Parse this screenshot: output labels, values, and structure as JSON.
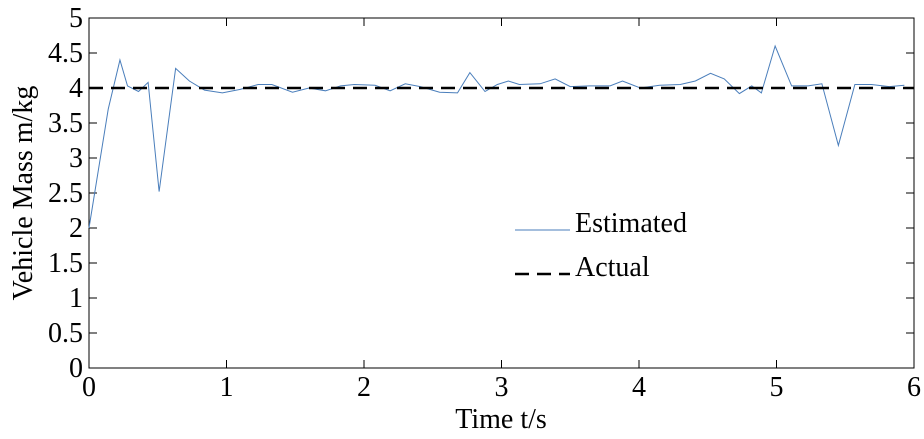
{
  "chart_data": {
    "type": "line",
    "xlabel": "Time t/s",
    "ylabel": "Vehicle Mass m/kg",
    "xlim": [
      0,
      6
    ],
    "xticks": [
      0,
      1,
      2,
      3,
      4,
      5,
      6
    ],
    "ylim": [
      0,
      5
    ],
    "yticks": [
      0,
      0.5,
      1,
      1.5,
      2,
      2.5,
      3,
      3.5,
      4,
      4.5,
      5
    ],
    "legend": "center",
    "series": [
      {
        "name": "Estimated",
        "color": "#4a7ebb",
        "dash": "solid",
        "x": [
          0,
          0.14,
          0.225,
          0.28,
          0.36,
          0.43,
          0.51,
          0.63,
          0.73,
          0.84,
          0.97,
          1.1,
          1.23,
          1.33,
          1.48,
          1.6,
          1.72,
          1.83,
          1.93,
          2.08,
          2.19,
          2.3,
          2.41,
          2.55,
          2.68,
          2.77,
          2.88,
          2.97,
          3.05,
          3.13,
          3.28,
          3.39,
          3.5,
          3.64,
          3.79,
          3.88,
          4.01,
          4.15,
          4.3,
          4.41,
          4.52,
          4.62,
          4.73,
          4.82,
          4.89,
          4.99,
          5.11,
          5.23,
          5.33,
          5.45,
          5.57,
          5.69,
          5.82,
          5.93
        ],
        "values": [
          2.0,
          3.7,
          4.4,
          4.03,
          3.95,
          4.08,
          2.52,
          4.28,
          4.1,
          3.97,
          3.93,
          3.98,
          4.05,
          4.05,
          3.94,
          4.0,
          3.96,
          4.03,
          4.05,
          4.04,
          3.96,
          4.06,
          4.02,
          3.94,
          3.93,
          4.22,
          3.95,
          4.05,
          4.1,
          4.05,
          4.06,
          4.13,
          4.02,
          4.03,
          4.03,
          4.1,
          4.0,
          4.04,
          4.05,
          4.1,
          4.21,
          4.13,
          3.92,
          4.03,
          3.93,
          4.6,
          4.03,
          4.03,
          4.06,
          3.18,
          4.05,
          4.05,
          4.02,
          4.04
        ]
      },
      {
        "name": "Actual",
        "color": "#000000",
        "dash": "dashed",
        "x": [
          0,
          6
        ],
        "values": [
          4,
          4
        ]
      }
    ]
  }
}
